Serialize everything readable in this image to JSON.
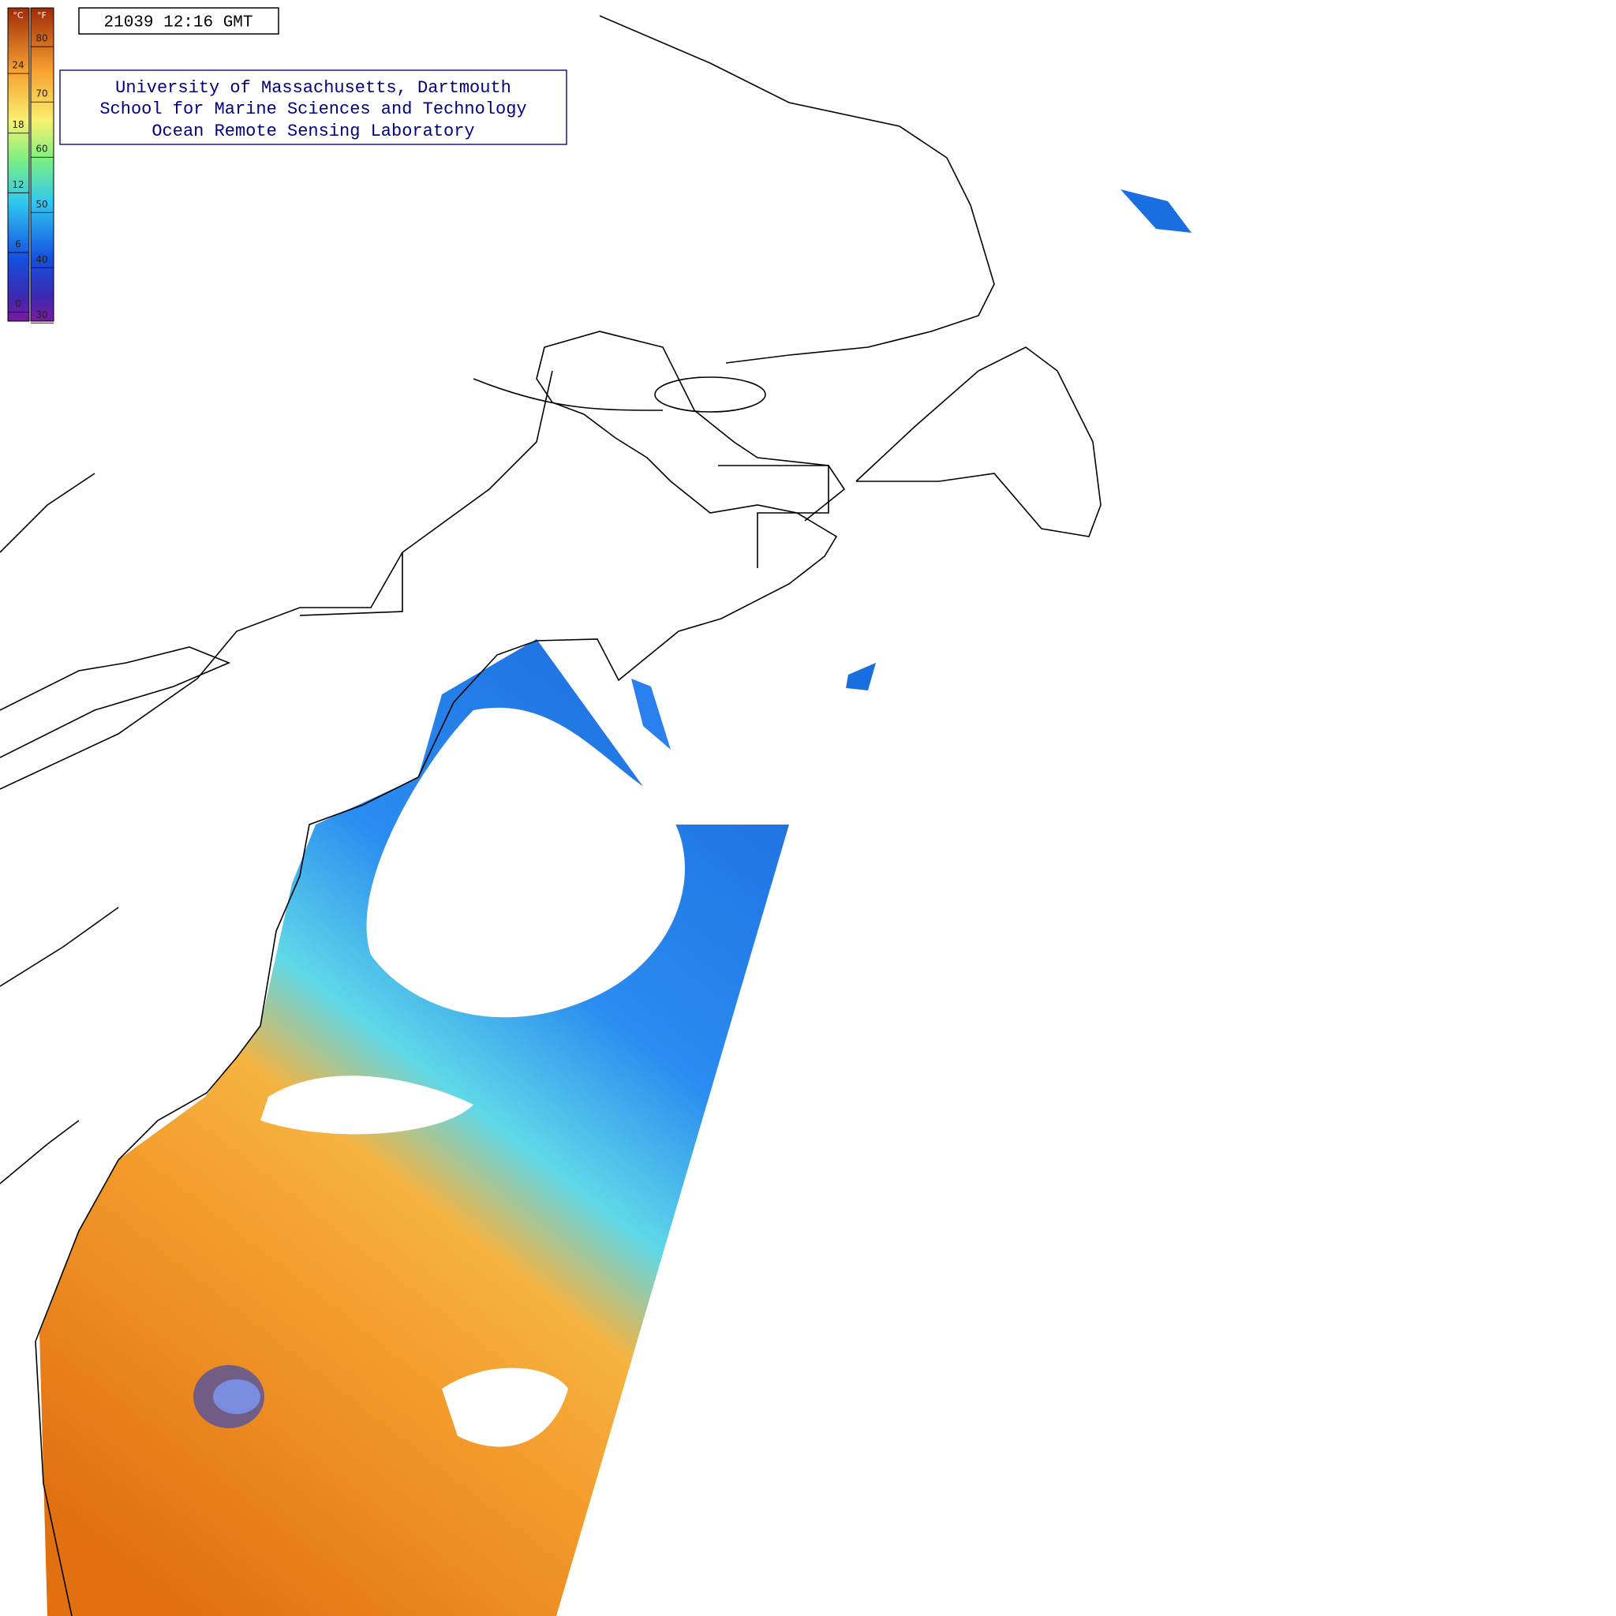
{
  "header": {
    "timestamp": "21039 12:16 GMT",
    "credit": [
      "University of Massachusetts, Dartmouth",
      "School for Marine Sciences and Technology",
      "Ocean Remote Sensing Laboratory"
    ]
  },
  "colorbar": {
    "celsius": {
      "unit": "°C",
      "lim": [
        -1.7,
        29.8
      ],
      "ticks": [
        0,
        6,
        12,
        18,
        24
      ]
    },
    "fahrenheit": {
      "unit": "°F",
      "lim": [
        28.9,
        85.6
      ],
      "ticks": [
        30,
        40,
        50,
        60,
        70,
        80
      ]
    }
  }
}
